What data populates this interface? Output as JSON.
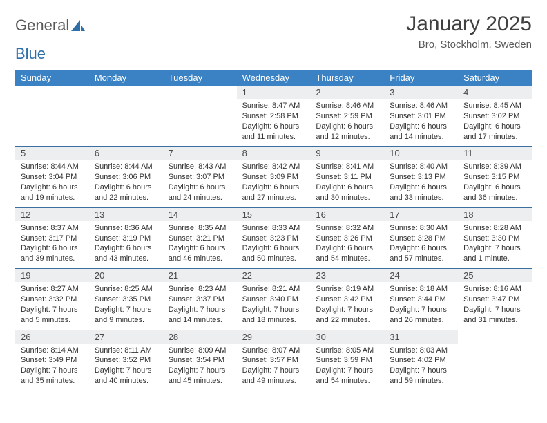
{
  "logo": {
    "word1": "General",
    "word2": "Blue",
    "icon_color": "#2f6fa8",
    "text_color": "#5a5a5a"
  },
  "title": "January 2025",
  "location": "Bro, Stockholm, Sweden",
  "header_bg": "#3b82c4",
  "daynum_bg": "#edeef0",
  "border_color": "#3b6fa0",
  "weekdays": [
    "Sunday",
    "Monday",
    "Tuesday",
    "Wednesday",
    "Thursday",
    "Friday",
    "Saturday"
  ],
  "weeks": [
    [
      {
        "n": "",
        "sr": "",
        "ss": "",
        "d1": "",
        "d2": ""
      },
      {
        "n": "",
        "sr": "",
        "ss": "",
        "d1": "",
        "d2": ""
      },
      {
        "n": "",
        "sr": "",
        "ss": "",
        "d1": "",
        "d2": ""
      },
      {
        "n": "1",
        "sr": "Sunrise: 8:47 AM",
        "ss": "Sunset: 2:58 PM",
        "d1": "Daylight: 6 hours",
        "d2": "and 11 minutes."
      },
      {
        "n": "2",
        "sr": "Sunrise: 8:46 AM",
        "ss": "Sunset: 2:59 PM",
        "d1": "Daylight: 6 hours",
        "d2": "and 12 minutes."
      },
      {
        "n": "3",
        "sr": "Sunrise: 8:46 AM",
        "ss": "Sunset: 3:01 PM",
        "d1": "Daylight: 6 hours",
        "d2": "and 14 minutes."
      },
      {
        "n": "4",
        "sr": "Sunrise: 8:45 AM",
        "ss": "Sunset: 3:02 PM",
        "d1": "Daylight: 6 hours",
        "d2": "and 17 minutes."
      }
    ],
    [
      {
        "n": "5",
        "sr": "Sunrise: 8:44 AM",
        "ss": "Sunset: 3:04 PM",
        "d1": "Daylight: 6 hours",
        "d2": "and 19 minutes."
      },
      {
        "n": "6",
        "sr": "Sunrise: 8:44 AM",
        "ss": "Sunset: 3:06 PM",
        "d1": "Daylight: 6 hours",
        "d2": "and 22 minutes."
      },
      {
        "n": "7",
        "sr": "Sunrise: 8:43 AM",
        "ss": "Sunset: 3:07 PM",
        "d1": "Daylight: 6 hours",
        "d2": "and 24 minutes."
      },
      {
        "n": "8",
        "sr": "Sunrise: 8:42 AM",
        "ss": "Sunset: 3:09 PM",
        "d1": "Daylight: 6 hours",
        "d2": "and 27 minutes."
      },
      {
        "n": "9",
        "sr": "Sunrise: 8:41 AM",
        "ss": "Sunset: 3:11 PM",
        "d1": "Daylight: 6 hours",
        "d2": "and 30 minutes."
      },
      {
        "n": "10",
        "sr": "Sunrise: 8:40 AM",
        "ss": "Sunset: 3:13 PM",
        "d1": "Daylight: 6 hours",
        "d2": "and 33 minutes."
      },
      {
        "n": "11",
        "sr": "Sunrise: 8:39 AM",
        "ss": "Sunset: 3:15 PM",
        "d1": "Daylight: 6 hours",
        "d2": "and 36 minutes."
      }
    ],
    [
      {
        "n": "12",
        "sr": "Sunrise: 8:37 AM",
        "ss": "Sunset: 3:17 PM",
        "d1": "Daylight: 6 hours",
        "d2": "and 39 minutes."
      },
      {
        "n": "13",
        "sr": "Sunrise: 8:36 AM",
        "ss": "Sunset: 3:19 PM",
        "d1": "Daylight: 6 hours",
        "d2": "and 43 minutes."
      },
      {
        "n": "14",
        "sr": "Sunrise: 8:35 AM",
        "ss": "Sunset: 3:21 PM",
        "d1": "Daylight: 6 hours",
        "d2": "and 46 minutes."
      },
      {
        "n": "15",
        "sr": "Sunrise: 8:33 AM",
        "ss": "Sunset: 3:23 PM",
        "d1": "Daylight: 6 hours",
        "d2": "and 50 minutes."
      },
      {
        "n": "16",
        "sr": "Sunrise: 8:32 AM",
        "ss": "Sunset: 3:26 PM",
        "d1": "Daylight: 6 hours",
        "d2": "and 54 minutes."
      },
      {
        "n": "17",
        "sr": "Sunrise: 8:30 AM",
        "ss": "Sunset: 3:28 PM",
        "d1": "Daylight: 6 hours",
        "d2": "and 57 minutes."
      },
      {
        "n": "18",
        "sr": "Sunrise: 8:28 AM",
        "ss": "Sunset: 3:30 PM",
        "d1": "Daylight: 7 hours",
        "d2": "and 1 minute."
      }
    ],
    [
      {
        "n": "19",
        "sr": "Sunrise: 8:27 AM",
        "ss": "Sunset: 3:32 PM",
        "d1": "Daylight: 7 hours",
        "d2": "and 5 minutes."
      },
      {
        "n": "20",
        "sr": "Sunrise: 8:25 AM",
        "ss": "Sunset: 3:35 PM",
        "d1": "Daylight: 7 hours",
        "d2": "and 9 minutes."
      },
      {
        "n": "21",
        "sr": "Sunrise: 8:23 AM",
        "ss": "Sunset: 3:37 PM",
        "d1": "Daylight: 7 hours",
        "d2": "and 14 minutes."
      },
      {
        "n": "22",
        "sr": "Sunrise: 8:21 AM",
        "ss": "Sunset: 3:40 PM",
        "d1": "Daylight: 7 hours",
        "d2": "and 18 minutes."
      },
      {
        "n": "23",
        "sr": "Sunrise: 8:19 AM",
        "ss": "Sunset: 3:42 PM",
        "d1": "Daylight: 7 hours",
        "d2": "and 22 minutes."
      },
      {
        "n": "24",
        "sr": "Sunrise: 8:18 AM",
        "ss": "Sunset: 3:44 PM",
        "d1": "Daylight: 7 hours",
        "d2": "and 26 minutes."
      },
      {
        "n": "25",
        "sr": "Sunrise: 8:16 AM",
        "ss": "Sunset: 3:47 PM",
        "d1": "Daylight: 7 hours",
        "d2": "and 31 minutes."
      }
    ],
    [
      {
        "n": "26",
        "sr": "Sunrise: 8:14 AM",
        "ss": "Sunset: 3:49 PM",
        "d1": "Daylight: 7 hours",
        "d2": "and 35 minutes."
      },
      {
        "n": "27",
        "sr": "Sunrise: 8:11 AM",
        "ss": "Sunset: 3:52 PM",
        "d1": "Daylight: 7 hours",
        "d2": "and 40 minutes."
      },
      {
        "n": "28",
        "sr": "Sunrise: 8:09 AM",
        "ss": "Sunset: 3:54 PM",
        "d1": "Daylight: 7 hours",
        "d2": "and 45 minutes."
      },
      {
        "n": "29",
        "sr": "Sunrise: 8:07 AM",
        "ss": "Sunset: 3:57 PM",
        "d1": "Daylight: 7 hours",
        "d2": "and 49 minutes."
      },
      {
        "n": "30",
        "sr": "Sunrise: 8:05 AM",
        "ss": "Sunset: 3:59 PM",
        "d1": "Daylight: 7 hours",
        "d2": "and 54 minutes."
      },
      {
        "n": "31",
        "sr": "Sunrise: 8:03 AM",
        "ss": "Sunset: 4:02 PM",
        "d1": "Daylight: 7 hours",
        "d2": "and 59 minutes."
      },
      {
        "n": "",
        "sr": "",
        "ss": "",
        "d1": "",
        "d2": ""
      }
    ]
  ]
}
